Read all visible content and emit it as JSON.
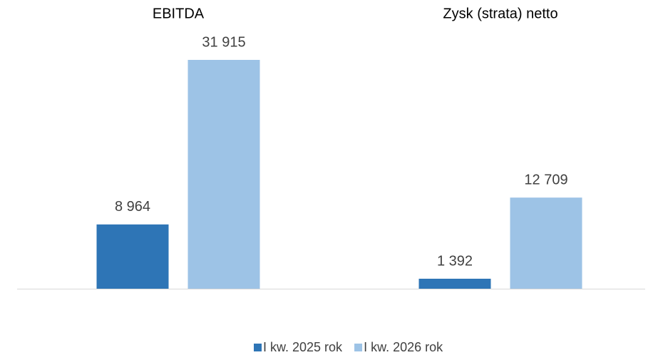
{
  "chart_data": {
    "type": "bar",
    "categories": [
      "EBITDA",
      "Zysk (strata) netto"
    ],
    "series": [
      {
        "name": "I kw. 2025 rok",
        "color": "#2e75b6",
        "values": [
          8964,
          1392
        ],
        "value_labels": [
          "8 964",
          "1 392"
        ]
      },
      {
        "name": "I kw. 2026 rok",
        "color": "#9dc3e6",
        "values": [
          31915,
          12709
        ],
        "value_labels": [
          "31 915",
          "12 709"
        ]
      }
    ]
  }
}
